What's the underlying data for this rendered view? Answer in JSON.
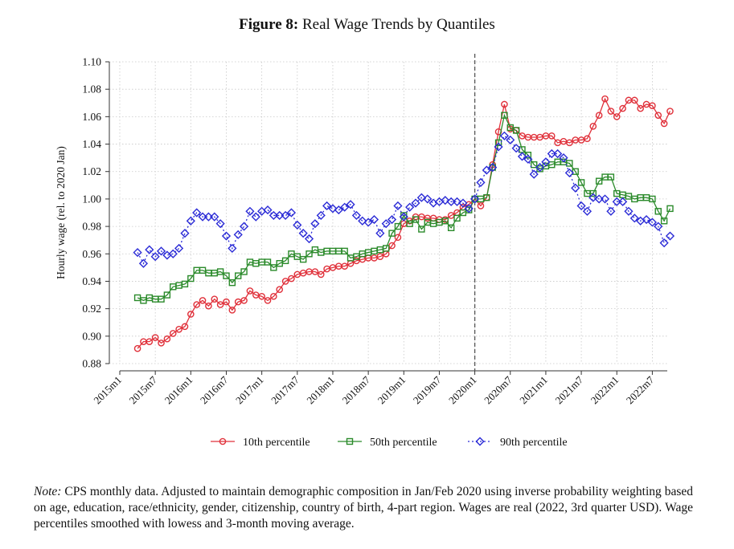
{
  "figure": {
    "label": "Figure 8:",
    "title": "Real Wage Trends by Quantiles"
  },
  "note": {
    "label": "Note:",
    "text": "CPS monthly data. Adjusted to maintain demographic composition in Jan/Feb 2020 using inverse probability weighting based on age, education, race/ethnicity, gender, citizenship, country of birth, 4-part region. Wages are real (2022, 3rd quarter USD). Wage percentiles smoothed with lowess and 3-month moving average."
  },
  "chart_data": {
    "type": "line",
    "ylabel": "Hourly wage (rel. to 2020 Jan)",
    "xlabel": "",
    "ylim": [
      0.88,
      1.1
    ],
    "yticks": [
      "0.88",
      "0.90",
      "0.92",
      "0.94",
      "0.96",
      "0.98",
      "1.00",
      "1.02",
      "1.04",
      "1.06",
      "1.08",
      "1.10"
    ],
    "xticks": [
      "2015m1",
      "2015m7",
      "2016m1",
      "2016m7",
      "2017m1",
      "2017m7",
      "2018m1",
      "2018m7",
      "2019m1",
      "2019m7",
      "2020m1",
      "2020m7",
      "2021m1",
      "2021m7",
      "2022m1",
      "2022m7"
    ],
    "x_start": "2015m4",
    "vertical_line": "2020m1",
    "grid": true,
    "legend_position": "bottom",
    "series": [
      {
        "name": "10th percentile",
        "color": "#e0303a",
        "marker": "circle",
        "values": [
          0.891,
          0.896,
          0.896,
          0.899,
          0.895,
          0.898,
          0.902,
          0.905,
          0.907,
          0.916,
          0.923,
          0.926,
          0.922,
          0.927,
          0.923,
          0.925,
          0.919,
          0.925,
          0.926,
          0.933,
          0.93,
          0.929,
          0.926,
          0.929,
          0.934,
          0.94,
          0.942,
          0.945,
          0.946,
          0.947,
          0.947,
          0.945,
          0.949,
          0.95,
          0.951,
          0.951,
          0.953,
          0.955,
          0.956,
          0.957,
          0.957,
          0.958,
          0.96,
          0.966,
          0.972,
          0.982,
          0.984,
          0.987,
          0.987,
          0.986,
          0.986,
          0.985,
          0.985,
          0.988,
          0.99,
          0.994,
          0.996,
          1.0,
          0.995,
          1.001,
          1.025,
          1.049,
          1.069,
          1.051,
          1.05,
          1.046,
          1.045,
          1.045,
          1.045,
          1.046,
          1.046,
          1.041,
          1.042,
          1.041,
          1.043,
          1.043,
          1.044,
          1.053,
          1.061,
          1.073,
          1.064,
          1.06,
          1.066,
          1.072,
          1.072,
          1.066,
          1.069,
          1.068,
          1.061,
          1.055,
          1.064
        ]
      },
      {
        "name": "50th percentile",
        "color": "#2a8a2a",
        "marker": "square",
        "values": [
          0.928,
          0.926,
          0.928,
          0.927,
          0.927,
          0.93,
          0.936,
          0.937,
          0.938,
          0.942,
          0.948,
          0.948,
          0.946,
          0.946,
          0.947,
          0.944,
          0.939,
          0.944,
          0.947,
          0.954,
          0.953,
          0.954,
          0.954,
          0.95,
          0.953,
          0.955,
          0.96,
          0.958,
          0.956,
          0.96,
          0.963,
          0.961,
          0.962,
          0.962,
          0.962,
          0.962,
          0.957,
          0.958,
          0.96,
          0.961,
          0.962,
          0.963,
          0.964,
          0.975,
          0.98,
          0.988,
          0.982,
          0.985,
          0.978,
          0.983,
          0.982,
          0.983,
          0.984,
          0.979,
          0.986,
          0.99,
          0.992,
          1.0,
          1.0,
          1.001,
          1.023,
          1.041,
          1.061,
          1.052,
          1.05,
          1.036,
          1.032,
          1.025,
          1.022,
          1.024,
          1.025,
          1.027,
          1.027,
          1.026,
          1.02,
          1.012,
          1.004,
          1.004,
          1.013,
          1.016,
          1.016,
          1.004,
          1.003,
          1.002,
          1.0,
          1.001,
          1.001,
          1.0,
          0.991,
          0.984,
          0.993
        ]
      },
      {
        "name": "90th percentile",
        "color": "#2b2bd6",
        "marker": "diamond",
        "values": [
          0.961,
          0.953,
          0.963,
          0.958,
          0.962,
          0.959,
          0.96,
          0.964,
          0.975,
          0.984,
          0.99,
          0.987,
          0.987,
          0.987,
          0.982,
          0.973,
          0.964,
          0.974,
          0.98,
          0.991,
          0.987,
          0.991,
          0.992,
          0.988,
          0.988,
          0.988,
          0.99,
          0.981,
          0.975,
          0.971,
          0.982,
          0.988,
          0.995,
          0.993,
          0.992,
          0.994,
          0.996,
          0.988,
          0.984,
          0.983,
          0.985,
          0.975,
          0.982,
          0.985,
          0.995,
          0.987,
          0.994,
          0.997,
          1.001,
          1.0,
          0.997,
          0.998,
          0.999,
          0.998,
          0.998,
          0.997,
          0.993,
          1.0,
          1.012,
          1.021,
          1.023,
          1.038,
          1.046,
          1.043,
          1.037,
          1.031,
          1.029,
          1.018,
          1.023,
          1.027,
          1.033,
          1.033,
          1.03,
          1.019,
          1.008,
          0.995,
          0.991,
          1.001,
          1.0,
          1.0,
          0.991,
          0.998,
          0.998,
          0.991,
          0.986,
          0.984,
          0.985,
          0.983,
          0.98,
          0.968,
          0.973
        ]
      }
    ]
  }
}
